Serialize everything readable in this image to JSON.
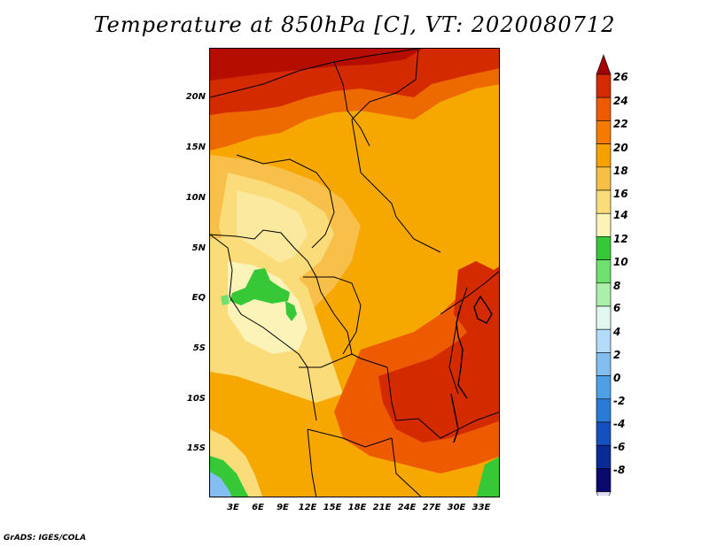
{
  "title": "Temperature at 850hPa [C], VT: 2020080712",
  "credit": "GrADS: IGES/COLA",
  "map": {
    "lat_labels": [
      "20N",
      "15N",
      "10N",
      "5N",
      "EQ",
      "5S",
      "10S",
      "15S"
    ],
    "lon_labels": [
      "3E",
      "6E",
      "9E",
      "12E",
      "15E",
      "18E",
      "21E",
      "24E",
      "27E",
      "30E",
      "33E"
    ]
  },
  "colorbar": {
    "labels": [
      "26",
      "24",
      "22",
      "20",
      "18",
      "16",
      "14",
      "12",
      "10",
      "8",
      "6",
      "4",
      "2",
      "0",
      "-2",
      "-4",
      "-6",
      "-8"
    ],
    "colors": [
      "#a50000",
      "#d42a00",
      "#ed5a00",
      "#f47b00",
      "#f6a100",
      "#f8bf46",
      "#fadc7a",
      "#fbf3b8",
      "#37c837",
      "#6ee06e",
      "#aaf0aa",
      "#e0f8f0",
      "#b4dcfa",
      "#82bef0",
      "#4ea0e6",
      "#2a7ad8",
      "#1450c0",
      "#0a2a96",
      "#0a0a6e",
      "#dcdcf0"
    ]
  }
}
